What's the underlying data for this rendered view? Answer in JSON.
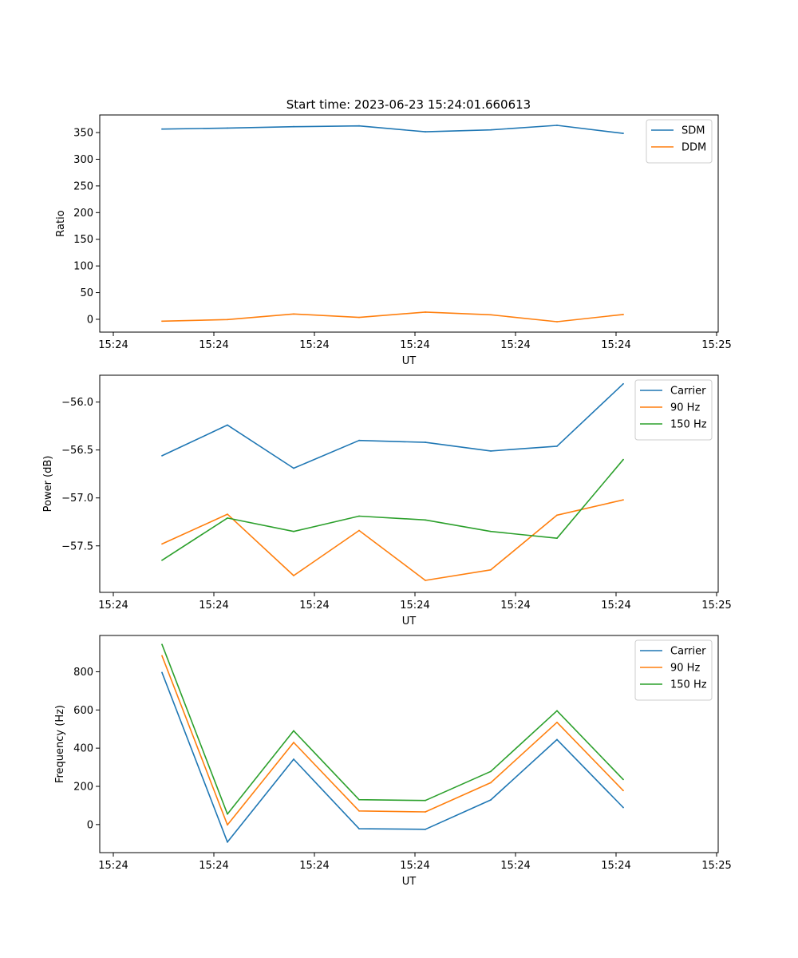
{
  "figure": {
    "title": "Start time: 2023-06-23 15:24:01.660613"
  },
  "chart_data": [
    {
      "type": "line",
      "title": "Start time: 2023-06-23 15:24:01.660613",
      "xlabel": "UT",
      "ylabel": "Ratio",
      "x_ticks": [
        "15:24",
        "15:24",
        "15:24",
        "15:24",
        "15:24",
        "15:24",
        "15:24"
      ],
      "x_tick_last": "15:25",
      "yticks": [
        0,
        50,
        100,
        150,
        200,
        250,
        300,
        350
      ],
      "ylim": [
        -24,
        383
      ],
      "grid": false,
      "legend_position": "top-right",
      "series": [
        {
          "name": "SDM",
          "color": "#1f77b4",
          "values": [
            356.5,
            358.5,
            361.0,
            362.5,
            351.5,
            355.0,
            363.5,
            348.5
          ]
        },
        {
          "name": "DDM",
          "color": "#ff7f0e",
          "values": [
            -3.5,
            -0.5,
            10.0,
            3.5,
            13.5,
            8.5,
            -4.5,
            9.0
          ]
        }
      ]
    },
    {
      "type": "line",
      "xlabel": "UT",
      "ylabel": "Power (dB)",
      "x_ticks": [
        "15:24",
        "15:24",
        "15:24",
        "15:24",
        "15:24",
        "15:24",
        "15:24"
      ],
      "x_tick_last": "15:25",
      "yticks": [
        -57.5,
        -57.0,
        -56.5,
        -56.0
      ],
      "ylim": [
        -57.985,
        -55.72
      ],
      "grid": false,
      "legend_position": "top-right",
      "series": [
        {
          "name": "Carrier",
          "color": "#1f77b4",
          "values": [
            -56.56,
            -56.24,
            -56.69,
            -56.4,
            -56.42,
            -56.51,
            -56.46,
            -55.81
          ]
        },
        {
          "name": "90 Hz",
          "color": "#ff7f0e",
          "values": [
            -57.48,
            -57.17,
            -57.81,
            -57.34,
            -57.86,
            -57.75,
            -57.18,
            -57.02
          ]
        },
        {
          "name": "150 Hz",
          "color": "#2ca02c",
          "values": [
            -57.65,
            -57.21,
            -57.35,
            -57.19,
            -57.23,
            -57.35,
            -57.42,
            -56.6
          ]
        }
      ]
    },
    {
      "type": "line",
      "xlabel": "UT",
      "ylabel": "Frequency (Hz)",
      "x_ticks": [
        "15:24",
        "15:24",
        "15:24",
        "15:24",
        "15:24",
        "15:24",
        "15:24"
      ],
      "x_tick_last": "15:25",
      "yticks": [
        0,
        200,
        400,
        600,
        800
      ],
      "ylim": [
        -147,
        990
      ],
      "grid": false,
      "legend_position": "top-right",
      "series": [
        {
          "name": "Carrier",
          "color": "#1f77b4",
          "values": [
            796,
            -92,
            342,
            -22,
            -25,
            129,
            445,
            89
          ]
        },
        {
          "name": "90 Hz",
          "color": "#ff7f0e",
          "values": [
            884,
            -2,
            430,
            71,
            66,
            219,
            535,
            178
          ]
        },
        {
          "name": "150 Hz",
          "color": "#2ca02c",
          "values": [
            943,
            55,
            491,
            130,
            126,
            278,
            596,
            236
          ]
        }
      ]
    }
  ]
}
